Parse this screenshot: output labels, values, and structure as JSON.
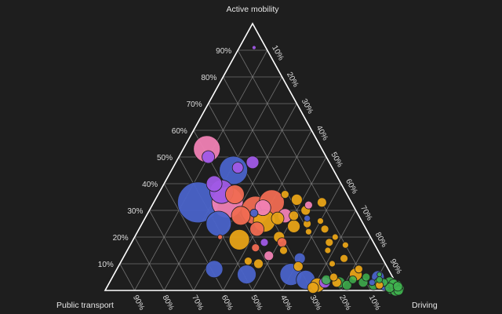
{
  "chart_data": {
    "type": "scatter",
    "subtype": "ternary-bubble",
    "grid": true,
    "axes": {
      "top": "Active mobility",
      "left": "Public transport",
      "right": "Driving"
    },
    "ticks": {
      "top_labels": [
        "90%",
        "80%",
        "70%",
        "60%",
        "50%",
        "40%",
        "30%",
        "20%",
        "10%"
      ],
      "right_labels": [
        "10%",
        "20%",
        "30%",
        "40%",
        "50%",
        "60%",
        "70%",
        "80%",
        "90%"
      ],
      "bottom_labels": [
        "90%",
        "80%",
        "70%",
        "60%",
        "50%",
        "40%",
        "30%",
        "20%",
        "10%"
      ]
    },
    "colors": {
      "background": "#1e1e1e",
      "blue": "#4a63c9",
      "pink": "#f081b4",
      "purple": "#a05ae6",
      "red": "#f06b52",
      "orange": "#e8a317",
      "green": "#3fb34f"
    },
    "points": [
      {
        "a": 0.91,
        "b": 0.04,
        "c": 0.05,
        "r": 2.5,
        "color": "purple"
      },
      {
        "a": 0.53,
        "b": 0.39,
        "c": 0.08,
        "r": 17,
        "color": "pink"
      },
      {
        "a": 0.5,
        "b": 0.4,
        "c": 0.1,
        "r": 8,
        "color": "purple"
      },
      {
        "a": 0.45,
        "b": 0.34,
        "c": 0.21,
        "r": 18,
        "color": "blue"
      },
      {
        "a": 0.48,
        "b": 0.26,
        "c": 0.26,
        "r": 8,
        "color": "purple"
      },
      {
        "a": 0.46,
        "b": 0.32,
        "c": 0.22,
        "r": 7,
        "color": "purple"
      },
      {
        "a": 0.33,
        "b": 0.52,
        "c": 0.15,
        "r": 26,
        "color": "blue"
      },
      {
        "a": 0.37,
        "b": 0.42,
        "c": 0.21,
        "r": 15,
        "color": "purple"
      },
      {
        "a": 0.4,
        "b": 0.43,
        "c": 0.17,
        "r": 10,
        "color": "purple"
      },
      {
        "a": 0.33,
        "b": 0.42,
        "c": 0.25,
        "r": 20,
        "color": "pink"
      },
      {
        "a": 0.36,
        "b": 0.38,
        "c": 0.26,
        "r": 12,
        "color": "red"
      },
      {
        "a": 0.3,
        "b": 0.34,
        "c": 0.36,
        "r": 18,
        "color": "red"
      },
      {
        "a": 0.33,
        "b": 0.27,
        "c": 0.4,
        "r": 16,
        "color": "red"
      },
      {
        "a": 0.28,
        "b": 0.4,
        "c": 0.32,
        "r": 12,
        "color": "red"
      },
      {
        "a": 0.31,
        "b": 0.31,
        "c": 0.38,
        "r": 10,
        "color": "pink"
      },
      {
        "a": 0.28,
        "b": 0.25,
        "c": 0.47,
        "r": 9,
        "color": "pink"
      },
      {
        "a": 0.27,
        "b": 0.28,
        "c": 0.45,
        "r": 8,
        "color": "orange"
      },
      {
        "a": 0.26,
        "b": 0.33,
        "c": 0.41,
        "r": 14,
        "color": "orange"
      },
      {
        "a": 0.29,
        "b": 0.35,
        "c": 0.36,
        "r": 5,
        "color": "blue"
      },
      {
        "a": 0.25,
        "b": 0.49,
        "c": 0.26,
        "r": 16,
        "color": "blue"
      },
      {
        "a": 0.19,
        "b": 0.45,
        "c": 0.36,
        "r": 13,
        "color": "orange"
      },
      {
        "a": 0.23,
        "b": 0.37,
        "c": 0.4,
        "r": 9,
        "color": "red"
      },
      {
        "a": 0.18,
        "b": 0.37,
        "c": 0.45,
        "r": 5,
        "color": "purple"
      },
      {
        "a": 0.16,
        "b": 0.41,
        "c": 0.43,
        "r": 5,
        "color": "red"
      },
      {
        "a": 0.18,
        "b": 0.31,
        "c": 0.51,
        "r": 6,
        "color": "red"
      },
      {
        "a": 0.2,
        "b": 0.31,
        "c": 0.49,
        "r": 7,
        "color": "orange"
      },
      {
        "a": 0.15,
        "b": 0.32,
        "c": 0.53,
        "r": 5,
        "color": "orange"
      },
      {
        "a": 0.13,
        "b": 0.38,
        "c": 0.49,
        "r": 6,
        "color": "pink"
      },
      {
        "a": 0.12,
        "b": 0.28,
        "c": 0.6,
        "r": 7,
        "color": "blue"
      },
      {
        "a": 0.1,
        "b": 0.43,
        "c": 0.47,
        "r": 6,
        "color": "orange"
      },
      {
        "a": 0.11,
        "b": 0.46,
        "c": 0.43,
        "r": 5,
        "color": "orange"
      },
      {
        "a": 0.08,
        "b": 0.59,
        "c": 0.33,
        "r": 11,
        "color": "blue"
      },
      {
        "a": 0.06,
        "b": 0.49,
        "c": 0.45,
        "r": 12,
        "color": "blue"
      },
      {
        "a": 0.06,
        "b": 0.34,
        "c": 0.6,
        "r": 14,
        "color": "blue"
      },
      {
        "a": 0.09,
        "b": 0.3,
        "c": 0.61,
        "r": 6,
        "color": "orange"
      },
      {
        "a": 0.04,
        "b": 0.3,
        "c": 0.66,
        "r": 12,
        "color": "blue"
      },
      {
        "a": 0.2,
        "b": 0.51,
        "c": 0.29,
        "r": 3,
        "color": "red"
      },
      {
        "a": 0.36,
        "b": 0.21,
        "c": 0.43,
        "r": 5,
        "color": "orange"
      },
      {
        "a": 0.34,
        "b": 0.18,
        "c": 0.48,
        "r": 7,
        "color": "orange"
      },
      {
        "a": 0.3,
        "b": 0.17,
        "c": 0.53,
        "r": 6,
        "color": "orange"
      },
      {
        "a": 0.32,
        "b": 0.15,
        "c": 0.53,
        "r": 5,
        "color": "pink"
      },
      {
        "a": 0.33,
        "b": 0.1,
        "c": 0.57,
        "r": 6,
        "color": "orange"
      },
      {
        "a": 0.28,
        "b": 0.22,
        "c": 0.5,
        "r": 6,
        "color": "orange"
      },
      {
        "a": 0.24,
        "b": 0.24,
        "c": 0.52,
        "r": 8,
        "color": "orange"
      },
      {
        "a": 0.25,
        "b": 0.19,
        "c": 0.56,
        "r": 5,
        "color": "orange"
      },
      {
        "a": 0.22,
        "b": 0.2,
        "c": 0.58,
        "r": 4,
        "color": "orange"
      },
      {
        "a": 0.26,
        "b": 0.14,
        "c": 0.6,
        "r": 4,
        "color": "orange"
      },
      {
        "a": 0.27,
        "b": 0.18,
        "c": 0.55,
        "r": 4,
        "color": "blue"
      },
      {
        "a": 0.23,
        "b": 0.14,
        "c": 0.63,
        "r": 5,
        "color": "orange"
      },
      {
        "a": 0.2,
        "b": 0.12,
        "c": 0.68,
        "r": 4,
        "color": "orange"
      },
      {
        "a": 0.18,
        "b": 0.15,
        "c": 0.67,
        "r": 5,
        "color": "orange"
      },
      {
        "a": 0.15,
        "b": 0.17,
        "c": 0.68,
        "r": 4,
        "color": "orange"
      },
      {
        "a": 0.17,
        "b": 0.1,
        "c": 0.73,
        "r": 4,
        "color": "orange"
      },
      {
        "a": 0.12,
        "b": 0.13,
        "c": 0.75,
        "r": 5,
        "color": "orange"
      },
      {
        "a": 0.1,
        "b": 0.18,
        "c": 0.72,
        "r": 4,
        "color": "orange"
      },
      {
        "a": 0.08,
        "b": 0.1,
        "c": 0.82,
        "r": 5,
        "color": "orange"
      },
      {
        "a": 0.06,
        "b": 0.12,
        "c": 0.82,
        "r": 8,
        "color": "orange"
      },
      {
        "a": 0.05,
        "b": 0.2,
        "c": 0.75,
        "r": 5,
        "color": "orange"
      },
      {
        "a": 0.05,
        "b": 0.05,
        "c": 0.9,
        "r": 8,
        "color": "blue"
      },
      {
        "a": 0.02,
        "b": 0.27,
        "c": 0.71,
        "r": 9,
        "color": "orange"
      },
      {
        "a": 0.03,
        "b": 0.24,
        "c": 0.73,
        "r": 7,
        "color": "purple"
      },
      {
        "a": 0.01,
        "b": 0.29,
        "c": 0.7,
        "r": 7,
        "color": "orange"
      },
      {
        "a": 0.03,
        "b": 0.2,
        "c": 0.77,
        "r": 6,
        "color": "orange"
      },
      {
        "a": 0.02,
        "b": 0.04,
        "c": 0.94,
        "r": 7,
        "color": "blue"
      },
      {
        "a": 0.03,
        "b": 0.04,
        "c": 0.93,
        "r": 5,
        "color": "green"
      },
      {
        "a": 0.04,
        "b": 0.23,
        "c": 0.73,
        "r": 6,
        "color": "green"
      },
      {
        "a": 0.03,
        "b": 0.19,
        "c": 0.78,
        "r": 7,
        "color": "green"
      },
      {
        "a": 0.02,
        "b": 0.17,
        "c": 0.81,
        "r": 6,
        "color": "green"
      },
      {
        "a": 0.04,
        "b": 0.14,
        "c": 0.82,
        "r": 5,
        "color": "green"
      },
      {
        "a": 0.05,
        "b": 0.09,
        "c": 0.86,
        "r": 5,
        "color": "green"
      },
      {
        "a": 0.03,
        "b": 0.11,
        "c": 0.86,
        "r": 6,
        "color": "green"
      },
      {
        "a": 0.02,
        "b": 0.08,
        "c": 0.9,
        "r": 6,
        "color": "green"
      },
      {
        "a": 0.03,
        "b": 0.02,
        "c": 0.95,
        "r": 7,
        "color": "green"
      },
      {
        "a": 0.02,
        "b": 0.03,
        "c": 0.95,
        "r": 8,
        "color": "green"
      },
      {
        "a": 0.02,
        "b": 0.02,
        "c": 0.96,
        "r": 9,
        "color": "green"
      },
      {
        "a": 0.015,
        "b": 0.015,
        "c": 0.97,
        "r": 10,
        "color": "green"
      },
      {
        "a": 0.01,
        "b": 0.02,
        "c": 0.97,
        "r": 9,
        "color": "green"
      },
      {
        "a": 0.01,
        "b": 0.01,
        "c": 0.98,
        "r": 10,
        "color": "green"
      },
      {
        "a": 0.005,
        "b": 0.01,
        "c": 0.985,
        "r": 9,
        "color": "green"
      },
      {
        "a": 0.005,
        "b": 0.005,
        "c": 0.99,
        "r": 8,
        "color": "green"
      },
      {
        "a": 0.01,
        "b": 0.005,
        "c": 0.985,
        "r": 7,
        "color": "green"
      },
      {
        "a": 0.02,
        "b": 0.01,
        "c": 0.97,
        "r": 7,
        "color": "green"
      },
      {
        "a": 0.025,
        "b": 0.01,
        "c": 0.965,
        "r": 6,
        "color": "green"
      },
      {
        "a": 0.01,
        "b": 0.03,
        "c": 0.96,
        "r": 6,
        "color": "green"
      },
      {
        "a": 0.0,
        "b": 0.015,
        "c": 0.985,
        "r": 7,
        "color": "green"
      },
      {
        "a": 0.0,
        "b": 0.005,
        "c": 0.995,
        "r": 6,
        "color": "green"
      },
      {
        "a": 0.015,
        "b": 0.0,
        "c": 0.985,
        "r": 6,
        "color": "green"
      },
      {
        "a": 0.03,
        "b": 0.06,
        "c": 0.91,
        "r": 5,
        "color": "green"
      },
      {
        "a": 0.04,
        "b": 0.05,
        "c": 0.91,
        "r": 4,
        "color": "green"
      },
      {
        "a": 0.06,
        "b": 0.04,
        "c": 0.9,
        "r": 3,
        "color": "green"
      },
      {
        "a": 0.02,
        "b": 0.06,
        "c": 0.92,
        "r": 5,
        "color": "orange"
      },
      {
        "a": 0.03,
        "b": 0.08,
        "c": 0.89,
        "r": 4,
        "color": "blue"
      }
    ]
  }
}
